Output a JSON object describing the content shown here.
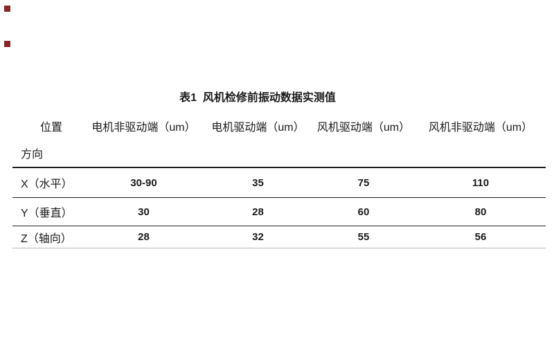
{
  "colors": {
    "text": "#1a1a1a",
    "rule_dark": "#1f1f1f",
    "rule_light": "#b8b8b8",
    "marker_red": "#8b2626"
  },
  "table": {
    "title": "表1  风机检修前振动数据实测值",
    "header": {
      "position_label": "位置",
      "direction_label": "方向",
      "columns": [
        "电机非驱动端（um）",
        "电机驱动端（um）",
        "风机驱动端（um）",
        "风机非驱动端（um）"
      ]
    },
    "rows": [
      {
        "label": "X（水平）",
        "values": [
          "30-90",
          "35",
          "75",
          "110"
        ]
      },
      {
        "label": "Y（垂直）",
        "values": [
          "30",
          "28",
          "60",
          "80"
        ]
      },
      {
        "label": "Z（轴向）",
        "values": [
          "28",
          "32",
          "55",
          "56"
        ]
      }
    ]
  }
}
